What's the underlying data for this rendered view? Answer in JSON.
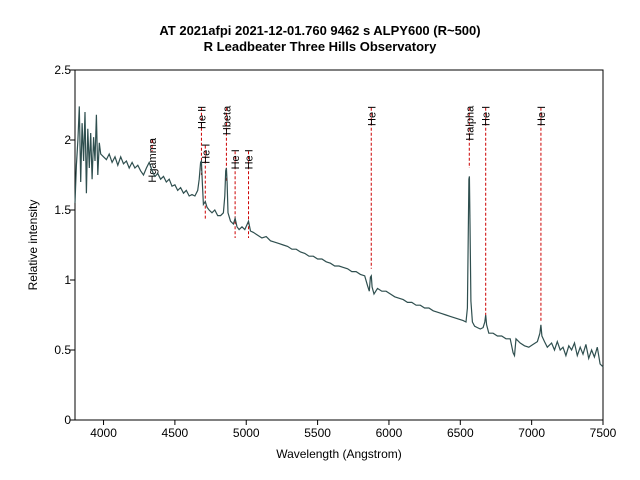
{
  "chart_data": {
    "type": "line",
    "title": "AT 2021afpi  2021-12-01.760  9462 s  ALPY600 (R~500)",
    "subtitle": "R Leadbeater Three Hills Observatory",
    "xlabel": "Wavelength (Angstrom)",
    "ylabel": "Relative intensity",
    "xlim": [
      3800,
      7500
    ],
    "ylim": [
      0,
      2.5
    ],
    "xticks": [
      4000,
      4500,
      5000,
      5500,
      6000,
      6500,
      7000,
      7500
    ],
    "yticks": [
      0,
      0.5,
      1,
      1.5,
      2,
      2.5
    ],
    "ytick_labels": [
      "0",
      "0.5",
      "1",
      "1.5",
      "2",
      "2.5"
    ],
    "grid": false,
    "line_color": "#2f4f4f",
    "annotation_color": "#cc0000",
    "annotations": [
      {
        "label": "Hgamma",
        "x": 4340,
        "y_top": 2.0,
        "y_bottom": 1.92
      },
      {
        "label": "He II",
        "x": 4686,
        "y_top": 2.23,
        "y_bottom": 1.75
      },
      {
        "label": "He I",
        "x": 4713,
        "y_top": 1.96,
        "y_bottom": 1.43
      },
      {
        "label": "Hbeta",
        "x": 4861,
        "y_top": 2.23,
        "y_bottom": 1.7
      },
      {
        "label": "He I",
        "x": 4922,
        "y_top": 1.92,
        "y_bottom": 1.3
      },
      {
        "label": "He I",
        "x": 5016,
        "y_top": 1.92,
        "y_bottom": 1.3
      },
      {
        "label": "He I",
        "x": 5876,
        "y_top": 2.23,
        "y_bottom": 1.08
      },
      {
        "label": "Halpha",
        "x": 6563,
        "y_top": 2.23,
        "y_bottom": 1.8
      },
      {
        "label": "He I",
        "x": 6678,
        "y_top": 2.23,
        "y_bottom": 0.75
      },
      {
        "label": "He I",
        "x": 7065,
        "y_top": 2.23,
        "y_bottom": 0.7
      }
    ],
    "series": [
      {
        "name": "spectrum",
        "points": [
          [
            3800,
            1.55
          ],
          [
            3810,
            1.82
          ],
          [
            3820,
            2.0
          ],
          [
            3830,
            2.24
          ],
          [
            3840,
            1.7
          ],
          [
            3850,
            2.12
          ],
          [
            3860,
            1.85
          ],
          [
            3870,
            2.2
          ],
          [
            3880,
            1.62
          ],
          [
            3890,
            2.08
          ],
          [
            3900,
            1.8
          ],
          [
            3910,
            2.05
          ],
          [
            3920,
            1.72
          ],
          [
            3930,
            2.02
          ],
          [
            3940,
            1.85
          ],
          [
            3950,
            2.18
          ],
          [
            3960,
            1.75
          ],
          [
            3970,
            1.98
          ],
          [
            3980,
            1.9
          ],
          [
            4000,
            1.88
          ],
          [
            4020,
            1.86
          ],
          [
            4040,
            1.9
          ],
          [
            4060,
            1.84
          ],
          [
            4080,
            1.88
          ],
          [
            4100,
            1.82
          ],
          [
            4120,
            1.88
          ],
          [
            4140,
            1.83
          ],
          [
            4160,
            1.85
          ],
          [
            4180,
            1.8
          ],
          [
            4200,
            1.84
          ],
          [
            4220,
            1.8
          ],
          [
            4240,
            1.82
          ],
          [
            4260,
            1.78
          ],
          [
            4280,
            1.75
          ],
          [
            4300,
            1.8
          ],
          [
            4320,
            1.84
          ],
          [
            4340,
            1.78
          ],
          [
            4360,
            1.74
          ],
          [
            4380,
            1.76
          ],
          [
            4400,
            1.72
          ],
          [
            4420,
            1.74
          ],
          [
            4440,
            1.7
          ],
          [
            4460,
            1.72
          ],
          [
            4480,
            1.67
          ],
          [
            4500,
            1.68
          ],
          [
            4520,
            1.64
          ],
          [
            4540,
            1.66
          ],
          [
            4560,
            1.62
          ],
          [
            4580,
            1.64
          ],
          [
            4600,
            1.6
          ],
          [
            4620,
            1.61
          ],
          [
            4640,
            1.6
          ],
          [
            4660,
            1.64
          ],
          [
            4670,
            1.72
          ],
          [
            4680,
            1.84
          ],
          [
            4686,
            1.85
          ],
          [
            4692,
            1.7
          ],
          [
            4700,
            1.54
          ],
          [
            4713,
            1.56
          ],
          [
            4725,
            1.52
          ],
          [
            4740,
            1.5
          ],
          [
            4760,
            1.48
          ],
          [
            4780,
            1.5
          ],
          [
            4800,
            1.46
          ],
          [
            4820,
            1.46
          ],
          [
            4840,
            1.48
          ],
          [
            4850,
            1.6
          ],
          [
            4856,
            1.78
          ],
          [
            4861,
            1.8
          ],
          [
            4866,
            1.7
          ],
          [
            4872,
            1.48
          ],
          [
            4890,
            1.42
          ],
          [
            4910,
            1.4
          ],
          [
            4922,
            1.44
          ],
          [
            4935,
            1.38
          ],
          [
            4950,
            1.36
          ],
          [
            4970,
            1.38
          ],
          [
            4990,
            1.36
          ],
          [
            5016,
            1.42
          ],
          [
            5030,
            1.35
          ],
          [
            5050,
            1.34
          ],
          [
            5080,
            1.32
          ],
          [
            5110,
            1.3
          ],
          [
            5140,
            1.31
          ],
          [
            5170,
            1.28
          ],
          [
            5200,
            1.27
          ],
          [
            5230,
            1.26
          ],
          [
            5260,
            1.25
          ],
          [
            5290,
            1.24
          ],
          [
            5320,
            1.22
          ],
          [
            5350,
            1.22
          ],
          [
            5380,
            1.2
          ],
          [
            5410,
            1.19
          ],
          [
            5440,
            1.17
          ],
          [
            5470,
            1.17
          ],
          [
            5500,
            1.15
          ],
          [
            5530,
            1.15
          ],
          [
            5560,
            1.13
          ],
          [
            5590,
            1.12
          ],
          [
            5620,
            1.1
          ],
          [
            5650,
            1.1
          ],
          [
            5680,
            1.09
          ],
          [
            5710,
            1.08
          ],
          [
            5740,
            1.06
          ],
          [
            5770,
            1.06
          ],
          [
            5800,
            1.04
          ],
          [
            5830,
            1.03
          ],
          [
            5850,
            0.96
          ],
          [
            5862,
            0.92
          ],
          [
            5870,
            1.02
          ],
          [
            5876,
            1.03
          ],
          [
            5882,
            0.95
          ],
          [
            5895,
            0.9
          ],
          [
            5920,
            0.94
          ],
          [
            5950,
            0.92
          ],
          [
            5980,
            0.92
          ],
          [
            6010,
            0.9
          ],
          [
            6040,
            0.88
          ],
          [
            6070,
            0.87
          ],
          [
            6100,
            0.86
          ],
          [
            6130,
            0.84
          ],
          [
            6160,
            0.84
          ],
          [
            6190,
            0.82
          ],
          [
            6220,
            0.82
          ],
          [
            6250,
            0.8
          ],
          [
            6280,
            0.8
          ],
          [
            6310,
            0.78
          ],
          [
            6340,
            0.77
          ],
          [
            6370,
            0.76
          ],
          [
            6400,
            0.75
          ],
          [
            6430,
            0.74
          ],
          [
            6460,
            0.73
          ],
          [
            6490,
            0.72
          ],
          [
            6520,
            0.71
          ],
          [
            6540,
            0.7
          ],
          [
            6550,
            0.8
          ],
          [
            6556,
            1.35
          ],
          [
            6560,
            1.72
          ],
          [
            6564,
            1.74
          ],
          [
            6568,
            1.4
          ],
          [
            6574,
            0.85
          ],
          [
            6585,
            0.7
          ],
          [
            6600,
            0.67
          ],
          [
            6620,
            0.66
          ],
          [
            6640,
            0.65
          ],
          [
            6660,
            0.66
          ],
          [
            6672,
            0.7
          ],
          [
            6678,
            0.75
          ],
          [
            6684,
            0.68
          ],
          [
            6700,
            0.62
          ],
          [
            6730,
            0.62
          ],
          [
            6760,
            0.6
          ],
          [
            6790,
            0.6
          ],
          [
            6820,
            0.58
          ],
          [
            6850,
            0.58
          ],
          [
            6870,
            0.48
          ],
          [
            6880,
            0.46
          ],
          [
            6890,
            0.58
          ],
          [
            6920,
            0.55
          ],
          [
            6950,
            0.53
          ],
          [
            6980,
            0.52
          ],
          [
            7010,
            0.54
          ],
          [
            7040,
            0.56
          ],
          [
            7058,
            0.62
          ],
          [
            7065,
            0.68
          ],
          [
            7072,
            0.6
          ],
          [
            7090,
            0.56
          ],
          [
            7110,
            0.52
          ],
          [
            7140,
            0.55
          ],
          [
            7160,
            0.5
          ],
          [
            7180,
            0.56
          ],
          [
            7200,
            0.5
          ],
          [
            7220,
            0.52
          ],
          [
            7240,
            0.46
          ],
          [
            7260,
            0.53
          ],
          [
            7280,
            0.5
          ],
          [
            7300,
            0.55
          ],
          [
            7320,
            0.46
          ],
          [
            7340,
            0.52
          ],
          [
            7360,
            0.47
          ],
          [
            7380,
            0.54
          ],
          [
            7400,
            0.44
          ],
          [
            7420,
            0.5
          ],
          [
            7440,
            0.45
          ],
          [
            7460,
            0.52
          ],
          [
            7480,
            0.4
          ],
          [
            7500,
            0.38
          ]
        ]
      }
    ]
  }
}
